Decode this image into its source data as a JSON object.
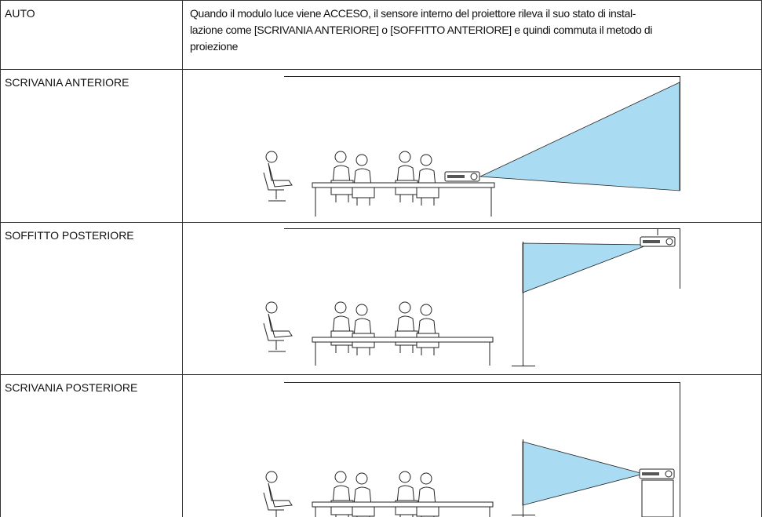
{
  "table": {
    "rows": [
      {
        "label": "AUTO",
        "text": [
          "Quando il modulo luce viene ACCESO, il sensore interno del proiettore rileva il suo stato di instal-",
          "lazione come [SCRIVANIA ANTERIORE] o [SOFFITTO ANTERIORE] e quindi commuta il metodo di",
          "proiezione"
        ]
      },
      {
        "label": "SCRIVANIA ANTERIORE"
      },
      {
        "label": "SOFFITTO POSTERIORE"
      },
      {
        "label": "SCRIVANIA POSTERIORE"
      }
    ]
  }
}
